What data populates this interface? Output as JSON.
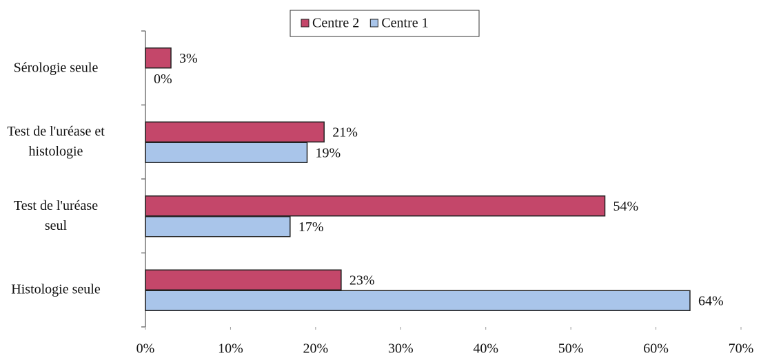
{
  "chart_data": {
    "type": "hbar",
    "categories": [
      "Sérologie seule",
      "Test de l'uréase et\nhistologie",
      "Test de l'uréase\nseul",
      "Histologie seule"
    ],
    "series": [
      {
        "name": "Centre 2",
        "color": "#c4476a",
        "values": [
          3,
          21,
          54,
          23
        ],
        "value_labels": [
          "3%",
          "21%",
          "54%",
          "23%"
        ]
      },
      {
        "name": "Centre 1",
        "color": "#a9c5ea",
        "values": [
          0,
          19,
          17,
          64
        ],
        "value_labels": [
          "0%",
          "19%",
          "17%",
          "64%"
        ]
      }
    ],
    "xlim": [
      0,
      70
    ],
    "xticks": [
      {
        "value": 0,
        "label": "0%"
      },
      {
        "value": 10,
        "label": "10%"
      },
      {
        "value": 20,
        "label": "20%"
      },
      {
        "value": 30,
        "label": "30%"
      },
      {
        "value": 40,
        "label": "40%"
      },
      {
        "value": 50,
        "label": "50%"
      },
      {
        "value": 60,
        "label": "60%"
      },
      {
        "value": 70,
        "label": "70%"
      }
    ],
    "legend": "top"
  }
}
